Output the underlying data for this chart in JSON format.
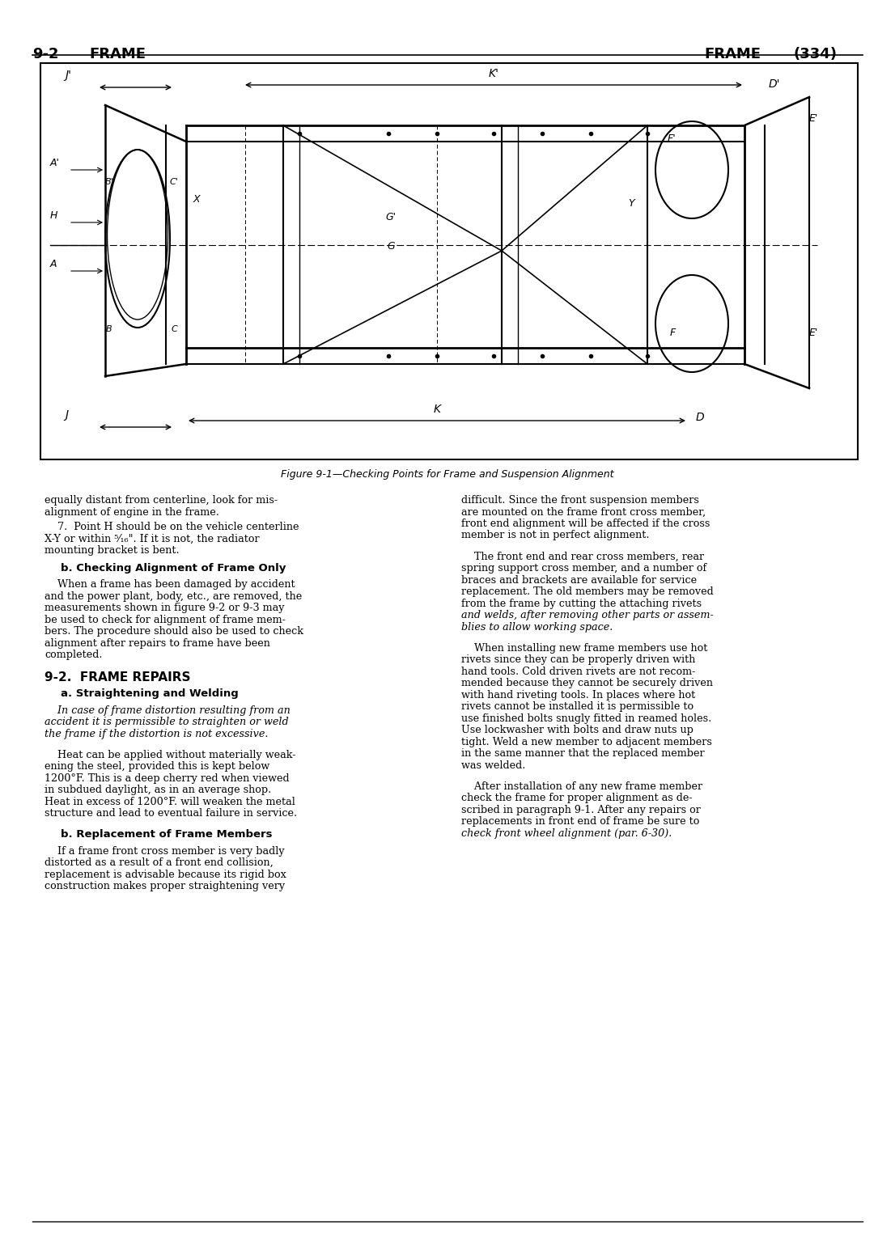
{
  "page_number_left": "9-2",
  "header_left": "FRAME",
  "header_right": "FRAME",
  "page_number_right": "(334)",
  "figure_caption": "Figure 9-1—Checking Points for Frame and Suspension Alignment",
  "col1_paragraphs": [
    "equally distant from centerline, look for mis-\nalignment of engine in the frame.",
    "7.  Point H should be on the vehicle centerline\nX-Y or within ⁵⁄₁₆″. If it is not, the radiator\nmounting bracket is bent.",
    "b. Checking Alignment of Frame Only",
    "When a frame has been damaged by accident\nand the power plant, body, etc., are removed, the\nmeasurements shown in figure 9-2 or 9-3 may\nbe used to check for alignment of frame mem-\nbers. The procedure should also be used to check\nalignment after repairs to frame have been\ncompleted.",
    "9-2. FRAME REPAIRS",
    "a. Straightening and Welding",
    "In case of frame distortion resulting from an\naccident it is permissible to straighten or weld\nthe frame if the distortion is not excessive.",
    "Heat can be applied without materially weak-\nening the steel, provided this is kept below\n1200°F. This is a deep cherry red when viewed\nin subdued daylight, as in an average shop.\nHeat in excess of 1200°F. will weaken the metal\nstructure and lead to eventual failure in service.",
    "b. Replacement of Frame Members",
    "If a frame front cross member is very badly\ndistorted as a result of a front end collision,\nreplacement is advisable because its rigid box\nconstruction makes proper straightening very"
  ],
  "col2_paragraphs": [
    "difficult. Since the front suspension members\nare mounted on the frame front cross member,\nfront end alignment will be affected if the cross\nmember is not in perfect alignment.",
    "The front end and rear cross members, rear\nspring support cross member, and a number of\nbraces and brackets are available for service\nreplacement. The old members may be removed\nfrom the frame by cutting the attaching rivets\nand welds, after removing other parts or assem-\nblies to allow working space.",
    "When installing new frame members use hot\nrivets since they can be properly driven with\nhand tools. Cold driven rivets are not recom-\nmended because they cannot be securely driven\nwith hand riveting tools. In places where hot\nrivets cannot be installed it is permissible to\nuse finished bolts snugly fitted in reamed holes.\nUse lockwasher with bolts and draw nuts up\ntight. Weld a new member to adjacent members\nin the same manner that the replaced member\nwas welded.",
    "After installation of any new frame member\ncheck the frame for proper alignment as de-\nscribed in paragraph 9-1. After any repairs or\nreplacements in front end of frame be sure to\ncheck front wheel alignment (par. 6-30)."
  ],
  "bg_color": "#ffffff",
  "text_color": "#000000",
  "line_color": "#000000"
}
